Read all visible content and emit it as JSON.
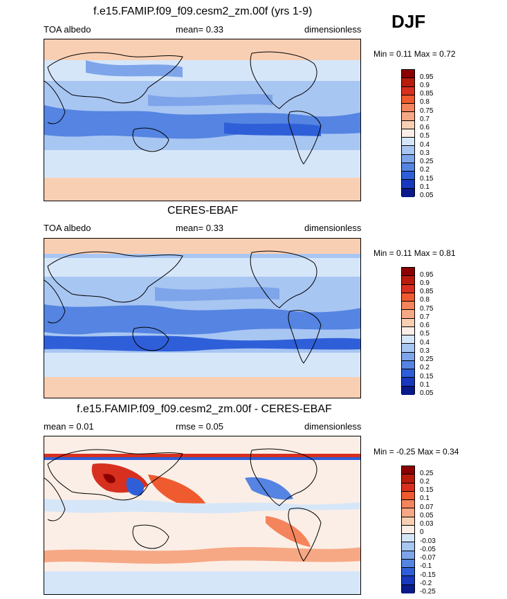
{
  "season": "DJF",
  "panels": [
    {
      "title": "f.e15.FAMIP.f09_f09.cesm2_zm.00f (yrs 1-9)",
      "left_label": "TOA albedo",
      "center_label": "mean=  0.33",
      "right_label": "dimensionless",
      "minmax": "Min =  0.11 Max =  0.72",
      "levels": [
        "0.95",
        "0.9",
        "0.85",
        "0.8",
        "0.75",
        "0.7",
        "0.6",
        "0.5",
        "0.4",
        "0.3",
        "0.25",
        "0.2",
        "0.15",
        "0.1",
        "0.05"
      ]
    },
    {
      "title": "CERES-EBAF",
      "left_label": "TOA albedo",
      "center_label": "mean=  0.33",
      "right_label": "dimensionless",
      "minmax": "Min =  0.11 Max =  0.81",
      "levels": [
        "0.95",
        "0.9",
        "0.85",
        "0.8",
        "0.75",
        "0.7",
        "0.6",
        "0.5",
        "0.4",
        "0.3",
        "0.25",
        "0.2",
        "0.15",
        "0.1",
        "0.05"
      ]
    },
    {
      "title": "f.e15.FAMIP.f09_f09.cesm2_zm.00f - CERES-EBAF",
      "left_label": "mean =   0.01",
      "center_label": "rmse =   0.05",
      "right_label": "dimensionless",
      "minmax": "Min =  -0.25 Max =   0.34",
      "levels": [
        "0.25",
        "0.2",
        "0.15",
        "0.1",
        "0.07",
        "0.05",
        "0.03",
        "0",
        "-0.03",
        "-0.05",
        "-0.07",
        "-0.1",
        "-0.15",
        "-0.2",
        "-0.25"
      ]
    }
  ],
  "colorbar_colors": [
    "#8b0000",
    "#b71c0c",
    "#d7301f",
    "#ef5a2f",
    "#f4845b",
    "#f6a884",
    "#f9cfb4",
    "#fbeee6",
    "#d6e6f9",
    "#a8c6f2",
    "#7ea5ea",
    "#5584e2",
    "#2f5fd8",
    "#1838be",
    "#0a1a8a"
  ],
  "chart_data": [
    {
      "type": "heatmap",
      "title": "f.e15.FAMIP.f09_f09.cesm2_zm.00f (yrs 1-9)",
      "variable": "TOA albedo",
      "units": "dimensionless",
      "mean": 0.33,
      "min": 0.11,
      "max": 0.72,
      "levels": [
        0.05,
        0.1,
        0.15,
        0.2,
        0.25,
        0.3,
        0.4,
        0.5,
        0.6,
        0.7,
        0.75,
        0.8,
        0.85,
        0.9,
        0.95
      ]
    },
    {
      "type": "heatmap",
      "title": "CERES-EBAF",
      "variable": "TOA albedo",
      "units": "dimensionless",
      "mean": 0.33,
      "min": 0.11,
      "max": 0.81,
      "levels": [
        0.05,
        0.1,
        0.15,
        0.2,
        0.25,
        0.3,
        0.4,
        0.5,
        0.6,
        0.7,
        0.75,
        0.8,
        0.85,
        0.9,
        0.95
      ]
    },
    {
      "type": "heatmap",
      "title": "f.e15.FAMIP.f09_f09.cesm2_zm.00f - CERES-EBAF",
      "units": "dimensionless",
      "mean": 0.01,
      "rmse": 0.05,
      "min": -0.25,
      "max": 0.34,
      "levels": [
        -0.25,
        -0.2,
        -0.15,
        -0.1,
        -0.07,
        -0.05,
        -0.03,
        0,
        0.03,
        0.05,
        0.07,
        0.1,
        0.15,
        0.2,
        0.25
      ]
    }
  ]
}
